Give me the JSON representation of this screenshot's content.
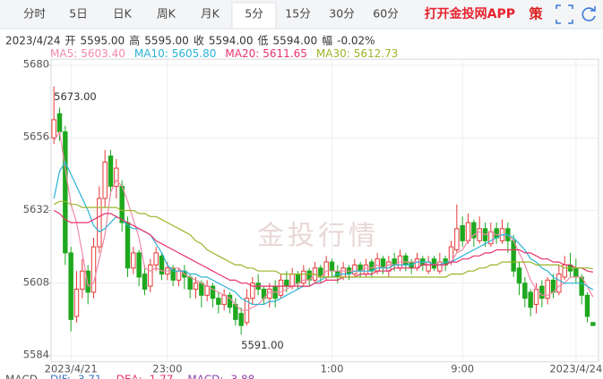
{
  "toolbar": {
    "tabs": [
      "分时",
      "5日",
      "日K",
      "周K",
      "月K",
      "5分",
      "15分",
      "30分",
      "60分"
    ],
    "selected_tab": 5,
    "app_link": "打开金投网APP",
    "strategy": "策"
  },
  "quote": {
    "date": "2023/4/24",
    "items": [
      {
        "label": "开",
        "value": "5595.00"
      },
      {
        "label": "高",
        "value": "5595.00"
      },
      {
        "label": "收",
        "value": "5594.00"
      },
      {
        "label": "低",
        "value": "5594.00"
      },
      {
        "label": "幅",
        "value": "-0.02%"
      }
    ]
  },
  "chart_data": {
    "type": "candlestick",
    "watermark": "金投行情",
    "up_color": "#e83a3a",
    "down_color": "#1ea81e",
    "ylim": [
      5582,
      5682
    ],
    "yticks": [
      5584,
      5608,
      5632,
      5656,
      5680
    ],
    "grid": true,
    "categories": [
      null,
      null,
      null,
      "2023/4/21",
      null,
      null,
      null,
      null,
      null,
      null,
      null,
      null,
      null,
      null,
      null,
      null,
      null,
      null,
      null,
      null,
      "23:00",
      null,
      null,
      null,
      null,
      null,
      null,
      null,
      null,
      null,
      null,
      null,
      null,
      null,
      null,
      null,
      null,
      null,
      null,
      null,
      null,
      null,
      null,
      null,
      null,
      null,
      null,
      null,
      null,
      "1:00",
      null,
      null,
      null,
      null,
      null,
      null,
      null,
      null,
      null,
      null,
      null,
      null,
      null,
      null,
      null,
      null,
      null,
      null,
      null,
      null,
      null,
      null,
      "9:00",
      null,
      null,
      null,
      null,
      null,
      null,
      null,
      null,
      null,
      null,
      null,
      null,
      null,
      null,
      null,
      null,
      null,
      null,
      null,
      "2023/4/24",
      null,
      null,
      null
    ],
    "open": [
      5656,
      5664,
      5658,
      5618,
      5597,
      5606,
      5612,
      5605,
      5620,
      5636,
      5650,
      5640,
      5640,
      5628,
      5613,
      5618,
      5611,
      5607,
      5614,
      5617,
      5611,
      5613,
      5609,
      5612,
      5610,
      5606,
      5608,
      5604,
      5607,
      5603,
      5601,
      5604,
      5601,
      5598,
      5595,
      5603,
      5608,
      5606,
      5603,
      5607,
      5604,
      5609,
      5607,
      5611,
      5608,
      5612,
      5609,
      5613,
      5610,
      5615,
      5612,
      5610,
      5613,
      5611,
      5614,
      5611,
      5615,
      5612,
      5616,
      5612,
      5616,
      5613,
      5617,
      5615,
      5613,
      5616,
      5612,
      5616,
      5612,
      5616,
      5615,
      5619,
      5627,
      5622,
      5628,
      5622,
      5626,
      5621,
      5626,
      5622,
      5626,
      5622,
      5613,
      5608,
      5605,
      5601,
      5607,
      5603,
      5609,
      5605,
      5610,
      5614,
      5613,
      5610,
      5604,
      5595
    ],
    "high": [
      5673,
      5666,
      5660,
      5620,
      5612,
      5616,
      5614,
      5623,
      5640,
      5652,
      5652,
      5649,
      5642,
      5630,
      5620,
      5619,
      5614,
      5616,
      5620,
      5618,
      5615,
      5614,
      5613,
      5614,
      5611,
      5610,
      5609,
      5609,
      5608,
      5605,
      5606,
      5605,
      5603,
      5600,
      5606,
      5610,
      5611,
      5607,
      5608,
      5609,
      5611,
      5612,
      5613,
      5612,
      5614,
      5613,
      5615,
      5614,
      5617,
      5616,
      5614,
      5615,
      5614,
      5616,
      5615,
      5616,
      5616,
      5618,
      5617,
      5617,
      5618,
      5619,
      5618,
      5616,
      5618,
      5617,
      5617,
      5617,
      5618,
      5617,
      5622,
      5634,
      5630,
      5631,
      5629,
      5630,
      5628,
      5628,
      5628,
      5629,
      5628,
      5624,
      5615,
      5610,
      5606,
      5608,
      5609,
      5610,
      5611,
      5614,
      5617,
      5618,
      5616,
      5611,
      5605,
      5595
    ],
    "low": [
      5654,
      5655,
      5614,
      5592,
      5595,
      5603,
      5601,
      5603,
      5618,
      5633,
      5637,
      5636,
      5625,
      5610,
      5611,
      5607,
      5604,
      5605,
      5612,
      5609,
      5609,
      5607,
      5607,
      5606,
      5603,
      5603,
      5600,
      5602,
      5600,
      5598,
      5599,
      5598,
      5594,
      5591,
      5594,
      5601,
      5604,
      5601,
      5600,
      5600,
      5603,
      5605,
      5606,
      5606,
      5607,
      5607,
      5608,
      5608,
      5609,
      5610,
      5608,
      5609,
      5609,
      5610,
      5610,
      5610,
      5610,
      5611,
      5611,
      5610,
      5612,
      5612,
      5612,
      5611,
      5612,
      5612,
      5611,
      5612,
      5611,
      5612,
      5614,
      5618,
      5620,
      5621,
      5620,
      5621,
      5620,
      5620,
      5621,
      5621,
      5618,
      5610,
      5604,
      5600,
      5597,
      5598,
      5600,
      5601,
      5603,
      5604,
      5609,
      5610,
      5608,
      5601,
      5595,
      5594
    ],
    "close": [
      5662,
      5658,
      5618,
      5596,
      5606,
      5612,
      5605,
      5620,
      5636,
      5648,
      5640,
      5646,
      5628,
      5613,
      5618,
      5610,
      5606,
      5614,
      5618,
      5611,
      5613,
      5609,
      5612,
      5610,
      5606,
      5608,
      5604,
      5607,
      5603,
      5601,
      5604,
      5600,
      5596,
      5594,
      5603,
      5608,
      5606,
      5603,
      5606,
      5603,
      5609,
      5607,
      5611,
      5608,
      5612,
      5609,
      5613,
      5610,
      5615,
      5612,
      5610,
      5613,
      5611,
      5614,
      5612,
      5614,
      5612,
      5616,
      5613,
      5615,
      5614,
      5617,
      5614,
      5613,
      5616,
      5614,
      5615,
      5613,
      5615,
      5614,
      5620,
      5626,
      5622,
      5628,
      5623,
      5626,
      5622,
      5625,
      5623,
      5626,
      5622,
      5612,
      5608,
      5603,
      5600,
      5606,
      5603,
      5609,
      5605,
      5611,
      5614,
      5612,
      5610,
      5604,
      5597,
      5594
    ],
    "annotations": [
      {
        "label": "5673.00",
        "value": 5673
      },
      {
        "label": "5591.00",
        "value": 5591
      }
    ],
    "series": [
      {
        "name": "MA5:",
        "last_label": "5603.40",
        "color": "#f08aa8",
        "values": [
          5655,
          5658,
          5646,
          5634,
          5628,
          5618,
          5607,
          5608,
          5616,
          5624,
          5638,
          5642,
          5640,
          5635,
          5629,
          5623,
          5613,
          5612,
          5613,
          5612,
          5612,
          5613,
          5613,
          5611,
          5610,
          5609,
          5608,
          5607,
          5606,
          5605,
          5604,
          5603,
          5601,
          5599,
          5599,
          5600,
          5601,
          5603,
          5605,
          5605,
          5605,
          5606,
          5607,
          5608,
          5609,
          5609,
          5611,
          5610,
          5612,
          5612,
          5612,
          5612,
          5612,
          5612,
          5612,
          5613,
          5613,
          5614,
          5613,
          5614,
          5614,
          5615,
          5615,
          5615,
          5615,
          5615,
          5614,
          5614,
          5615,
          5614,
          5615,
          5618,
          5619,
          5622,
          5624,
          5625,
          5624,
          5625,
          5624,
          5624,
          5624,
          5622,
          5618,
          5614,
          5609,
          5606,
          5604,
          5604,
          5605,
          5607,
          5608,
          5610,
          5610,
          5610,
          5607,
          5603.4
        ]
      },
      {
        "name": "MA10:",
        "last_label": "5605.80",
        "color": "#2ab3d6",
        "values": [
          5636,
          5645,
          5648,
          5644,
          5640,
          5636,
          5632,
          5627,
          5625,
          5626,
          5628,
          5630,
          5629,
          5627,
          5626,
          5626,
          5625,
          5624,
          5621,
          5618,
          5614,
          5612,
          5612,
          5612,
          5611,
          5611,
          5610,
          5610,
          5609,
          5608,
          5607,
          5606,
          5605,
          5603,
          5602,
          5601,
          5601,
          5601,
          5602,
          5602,
          5603,
          5604,
          5605,
          5606,
          5607,
          5607,
          5608,
          5609,
          5610,
          5610,
          5611,
          5611,
          5611,
          5612,
          5612,
          5612,
          5612,
          5613,
          5613,
          5613,
          5614,
          5614,
          5614,
          5614,
          5615,
          5615,
          5615,
          5614,
          5614,
          5615,
          5615,
          5616,
          5617,
          5618,
          5619,
          5620,
          5621,
          5622,
          5623,
          5624,
          5624,
          5623,
          5621,
          5619,
          5616,
          5615,
          5613,
          5612,
          5610,
          5609,
          5608,
          5608,
          5608,
          5608,
          5607,
          5605.8
        ]
      },
      {
        "name": "MA20:",
        "last_label": "5611.65",
        "color": "#e6336b",
        "values": [
          5632,
          5631,
          5629,
          5628,
          5628,
          5628,
          5628,
          5629,
          5630,
          5631,
          5631,
          5630,
          5629,
          5628,
          5627,
          5626,
          5625,
          5624,
          5622,
          5621,
          5620,
          5619,
          5618,
          5617,
          5616,
          5615,
          5614,
          5613,
          5612,
          5611,
          5610,
          5609,
          5609,
          5608,
          5608,
          5607,
          5607,
          5607,
          5607,
          5607,
          5607,
          5607,
          5607,
          5607,
          5607,
          5607,
          5608,
          5608,
          5609,
          5609,
          5609,
          5610,
          5610,
          5610,
          5611,
          5611,
          5611,
          5612,
          5612,
          5612,
          5613,
          5613,
          5613,
          5613,
          5613,
          5614,
          5614,
          5614,
          5614,
          5614,
          5615,
          5615,
          5616,
          5616,
          5617,
          5617,
          5618,
          5618,
          5619,
          5619,
          5619,
          5619,
          5619,
          5618,
          5618,
          5617,
          5616,
          5616,
          5615,
          5615,
          5614,
          5614,
          5613,
          5613,
          5612,
          5611.65
        ]
      },
      {
        "name": "MA30:",
        "last_label": "5612.73",
        "color": "#9bb52a",
        "values": [
          5634,
          5635,
          5635,
          5634,
          5634,
          5633,
          5633,
          5633,
          5633,
          5633,
          5633,
          5633,
          5632,
          5632,
          5632,
          5631,
          5631,
          5630,
          5630,
          5629,
          5628,
          5627,
          5626,
          5625,
          5624,
          5622,
          5621,
          5619,
          5618,
          5617,
          5616,
          5615,
          5614,
          5614,
          5613,
          5613,
          5612,
          5612,
          5612,
          5612,
          5611,
          5611,
          5611,
          5611,
          5611,
          5611,
          5611,
          5610,
          5610,
          5610,
          5610,
          5610,
          5610,
          5610,
          5610,
          5610,
          5610,
          5610,
          5610,
          5610,
          5610,
          5610,
          5610,
          5610,
          5610,
          5610,
          5610,
          5610,
          5610,
          5610,
          5611,
          5611,
          5611,
          5612,
          5612,
          5613,
          5613,
          5614,
          5614,
          5615,
          5615,
          5615,
          5615,
          5615,
          5615,
          5614,
          5614,
          5614,
          5614,
          5614,
          5613,
          5613,
          5613,
          5613,
          5613,
          5612.73
        ]
      }
    ],
    "indicator": {
      "name": "MACD",
      "items": [
        {
          "label": "DIF: -3.71",
          "color": "#3d78c7"
        },
        {
          "label": "DEA: -1.77",
          "color": "#e6336b"
        },
        {
          "label": "MACD: -3.88",
          "color": "#8e44ad"
        }
      ]
    }
  }
}
